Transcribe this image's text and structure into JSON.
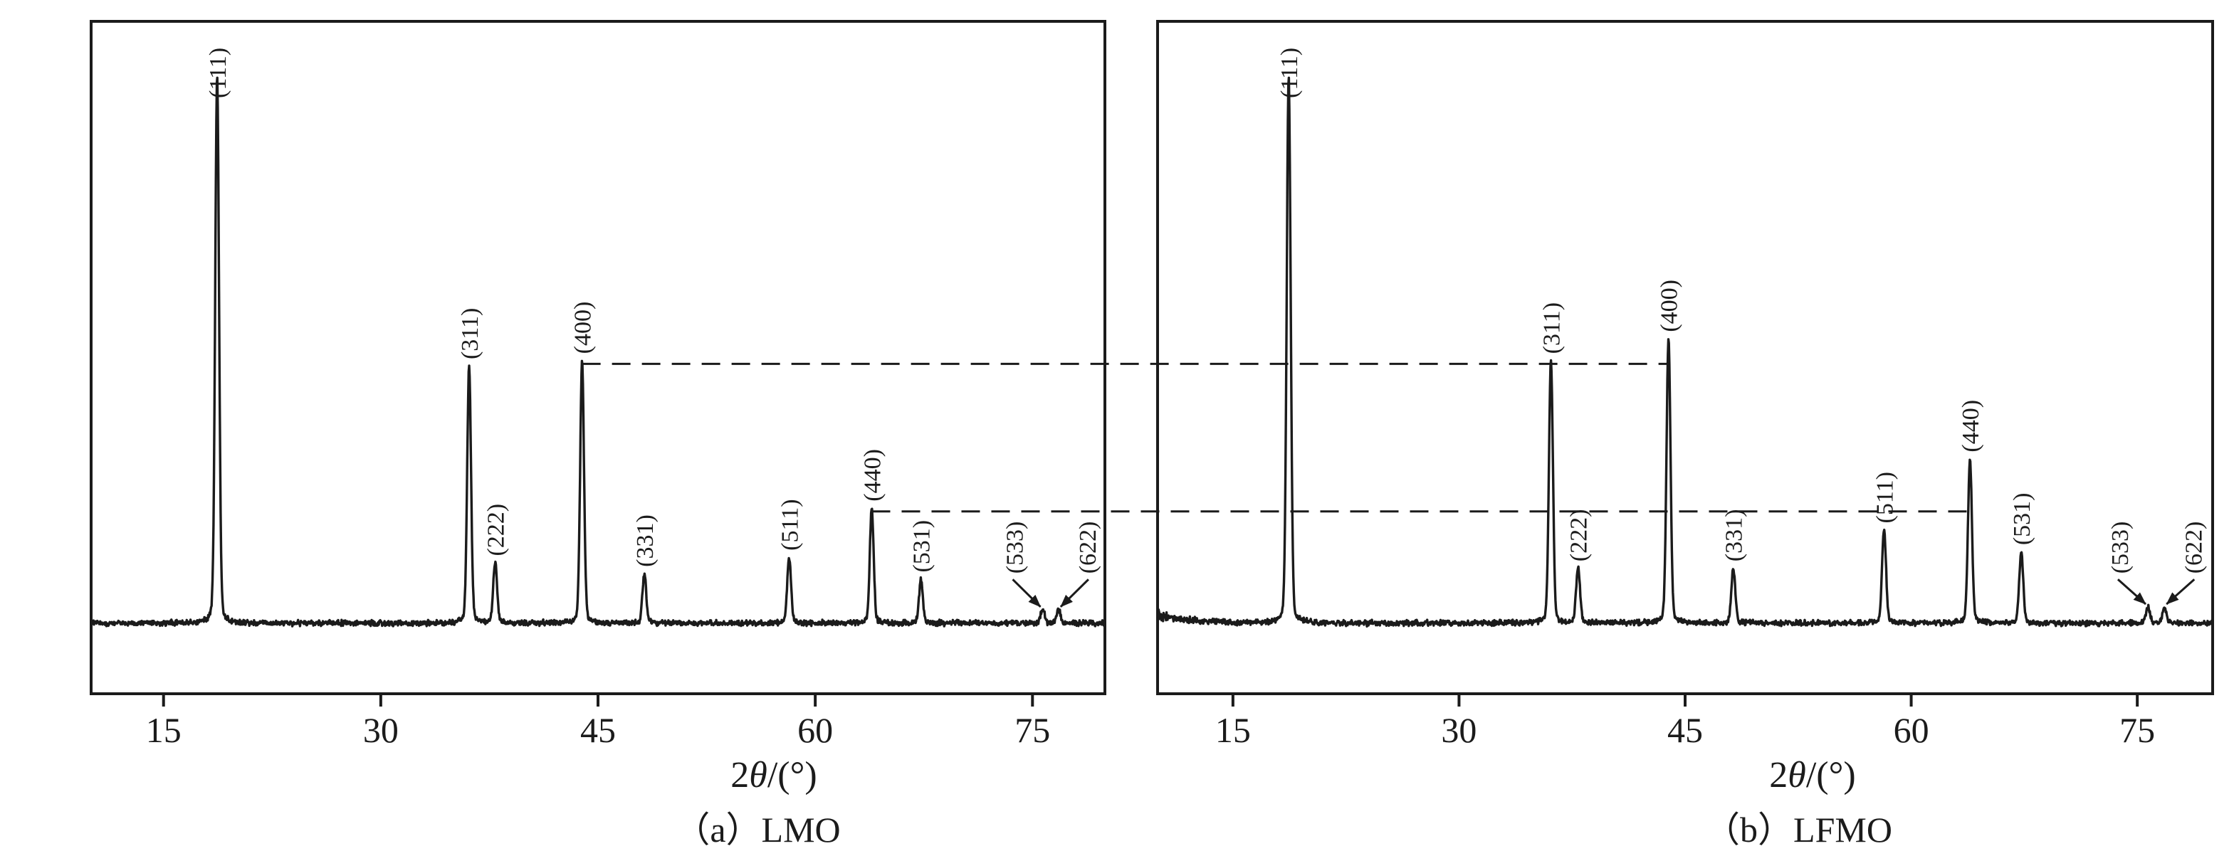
{
  "figure": {
    "background": "#ffffff",
    "ink_color": "#1b1b1b",
    "description": "Two XRD patterns compared side by side with dashed guide lines linking (400) and (440) peak heights"
  },
  "chart_data": [
    {
      "type": "line",
      "chart_kind": "xrd-pattern",
      "title": "（a）LMO",
      "xlabel": "2θ/(°)",
      "ylabel": "",
      "xlim": [
        10,
        80
      ],
      "ylim": [
        0,
        110
      ],
      "x_ticks": [
        15,
        30,
        45,
        60,
        75
      ],
      "grid": false,
      "baseline_bump": false,
      "peaks": [
        {
          "hkl": "(111)",
          "two_theta": 18.7,
          "rel_intensity": 100
        },
        {
          "hkl": "(311)",
          "two_theta": 36.1,
          "rel_intensity": 47
        },
        {
          "hkl": "(222)",
          "two_theta": 37.9,
          "rel_intensity": 11
        },
        {
          "hkl": "(400)",
          "two_theta": 43.9,
          "rel_intensity": 48
        },
        {
          "hkl": "(331)",
          "two_theta": 48.2,
          "rel_intensity": 9
        },
        {
          "hkl": "(511)",
          "two_theta": 58.2,
          "rel_intensity": 12
        },
        {
          "hkl": "(440)",
          "two_theta": 63.9,
          "rel_intensity": 21
        },
        {
          "hkl": "(531)",
          "two_theta": 67.3,
          "rel_intensity": 8
        },
        {
          "hkl": "(533)",
          "two_theta": 75.7,
          "rel_intensity": 2.5,
          "label_arrow": true,
          "label_side": "left"
        },
        {
          "hkl": "(622)",
          "two_theta": 76.8,
          "rel_intensity": 2.5,
          "label_arrow": true,
          "label_side": "right"
        }
      ]
    },
    {
      "type": "line",
      "chart_kind": "xrd-pattern",
      "title": "（b）LFMO",
      "xlabel": "2θ/(°)",
      "ylabel": "",
      "xlim": [
        10,
        80
      ],
      "ylim": [
        0,
        110
      ],
      "x_ticks": [
        15,
        30,
        45,
        60,
        75
      ],
      "grid": false,
      "baseline_bump": true,
      "peaks": [
        {
          "hkl": "(111)",
          "two_theta": 18.7,
          "rel_intensity": 100
        },
        {
          "hkl": "(311)",
          "two_theta": 36.1,
          "rel_intensity": 48
        },
        {
          "hkl": "(222)",
          "two_theta": 37.9,
          "rel_intensity": 10
        },
        {
          "hkl": "(400)",
          "two_theta": 43.9,
          "rel_intensity": 52
        },
        {
          "hkl": "(331)",
          "two_theta": 48.2,
          "rel_intensity": 10
        },
        {
          "hkl": "(511)",
          "two_theta": 58.2,
          "rel_intensity": 17
        },
        {
          "hkl": "(440)",
          "two_theta": 63.9,
          "rel_intensity": 30
        },
        {
          "hkl": "(531)",
          "two_theta": 67.3,
          "rel_intensity": 13
        },
        {
          "hkl": "(533)",
          "two_theta": 75.7,
          "rel_intensity": 3,
          "label_arrow": true,
          "label_side": "left"
        },
        {
          "hkl": "(622)",
          "two_theta": 76.8,
          "rel_intensity": 3,
          "label_arrow": true,
          "label_side": "right"
        }
      ]
    }
  ],
  "reference_lines": [
    {
      "anchor_hkl": "(400)",
      "rel_intensity": 48,
      "style": "dashed"
    },
    {
      "anchor_hkl": "(440)",
      "rel_intensity": 21,
      "style": "dashed"
    }
  ]
}
